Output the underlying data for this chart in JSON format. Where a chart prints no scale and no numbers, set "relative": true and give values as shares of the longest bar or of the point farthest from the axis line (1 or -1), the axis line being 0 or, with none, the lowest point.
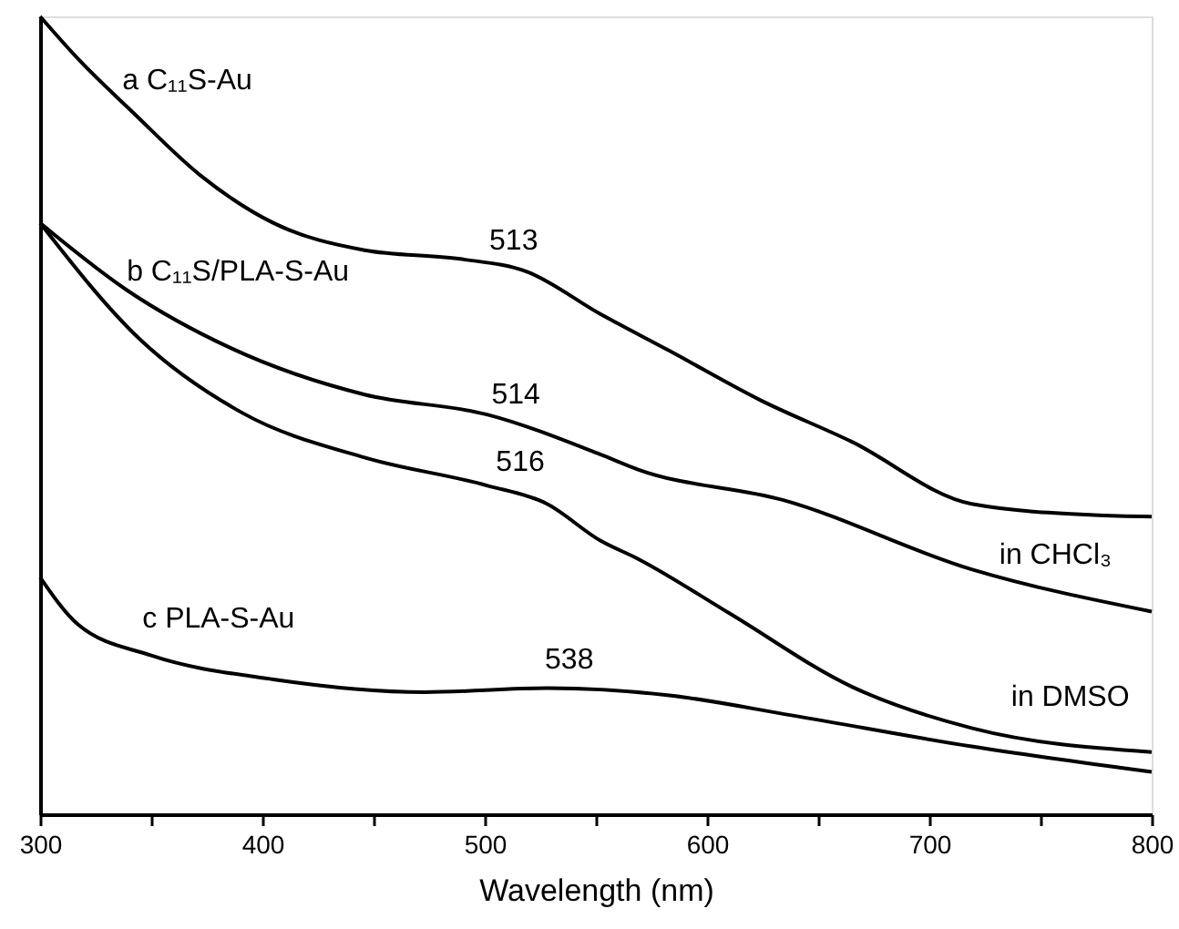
{
  "chart_data": {
    "type": "line",
    "relative": true,
    "xlabel": "Wavelength (nm)",
    "xlim": [
      300,
      800
    ],
    "xticks": [
      300,
      {
        "value": 350,
        "label": null
      },
      400,
      {
        "value": 450,
        "label": null
      },
      500,
      {
        "value": 550,
        "label": null
      },
      600,
      {
        "value": 650,
        "label": null
      },
      700,
      {
        "value": 750,
        "label": null
      },
      800
    ],
    "grid": false,
    "marker": "none",
    "line_style": "solid",
    "series": [
      {
        "name": "a C₁₁S-Au",
        "color": "#000000",
        "x": [
          300,
          317,
          342,
          372,
          405,
          446,
          489,
          519,
          552,
          583,
          624,
          665,
          719,
          774,
          800
        ],
        "values": [
          1.0,
          0.947,
          0.879,
          0.801,
          0.741,
          0.707,
          0.696,
          0.68,
          0.627,
          0.581,
          0.519,
          0.467,
          0.389,
          0.375,
          0.373
        ]
      },
      {
        "name": "b C₁₁S/PLA-S-Au",
        "color": "#000000",
        "x": [
          300,
          339,
          386,
          446,
          501,
          552,
          569,
          634,
          719,
          800
        ],
        "values": [
          0.741,
          0.657,
          0.584,
          0.526,
          0.501,
          0.451,
          0.432,
          0.394,
          0.307,
          0.254
        ]
      },
      {
        "color": "#000000",
        "x": [
          300,
          345,
          391,
          446,
          501,
          528,
          552,
          569,
          610,
          665,
          719,
          800
        ],
        "values": [
          0.741,
          0.595,
          0.503,
          0.447,
          0.412,
          0.389,
          0.343,
          0.32,
          0.252,
          0.16,
          0.108,
          0.078
        ]
      },
      {
        "name": "c PLA-S-Au",
        "color": "#000000",
        "x": [
          300,
          317,
          350,
          405,
          473,
          528,
          583,
          638,
          719,
          800
        ],
        "values": [
          0.297,
          0.238,
          0.199,
          0.169,
          0.153,
          0.158,
          0.149,
          0.124,
          0.085,
          0.053
        ]
      }
    ],
    "annotations": [
      {
        "text": "513",
        "x": 513,
        "y": 0.683
      },
      {
        "text": "514",
        "x": 514,
        "y": 0.49
      },
      {
        "text": "516",
        "x": 516,
        "y": 0.405
      },
      {
        "text": "538",
        "x": 538,
        "y": 0.158
      },
      "in CHCl₃",
      "in DMSO"
    ]
  }
}
